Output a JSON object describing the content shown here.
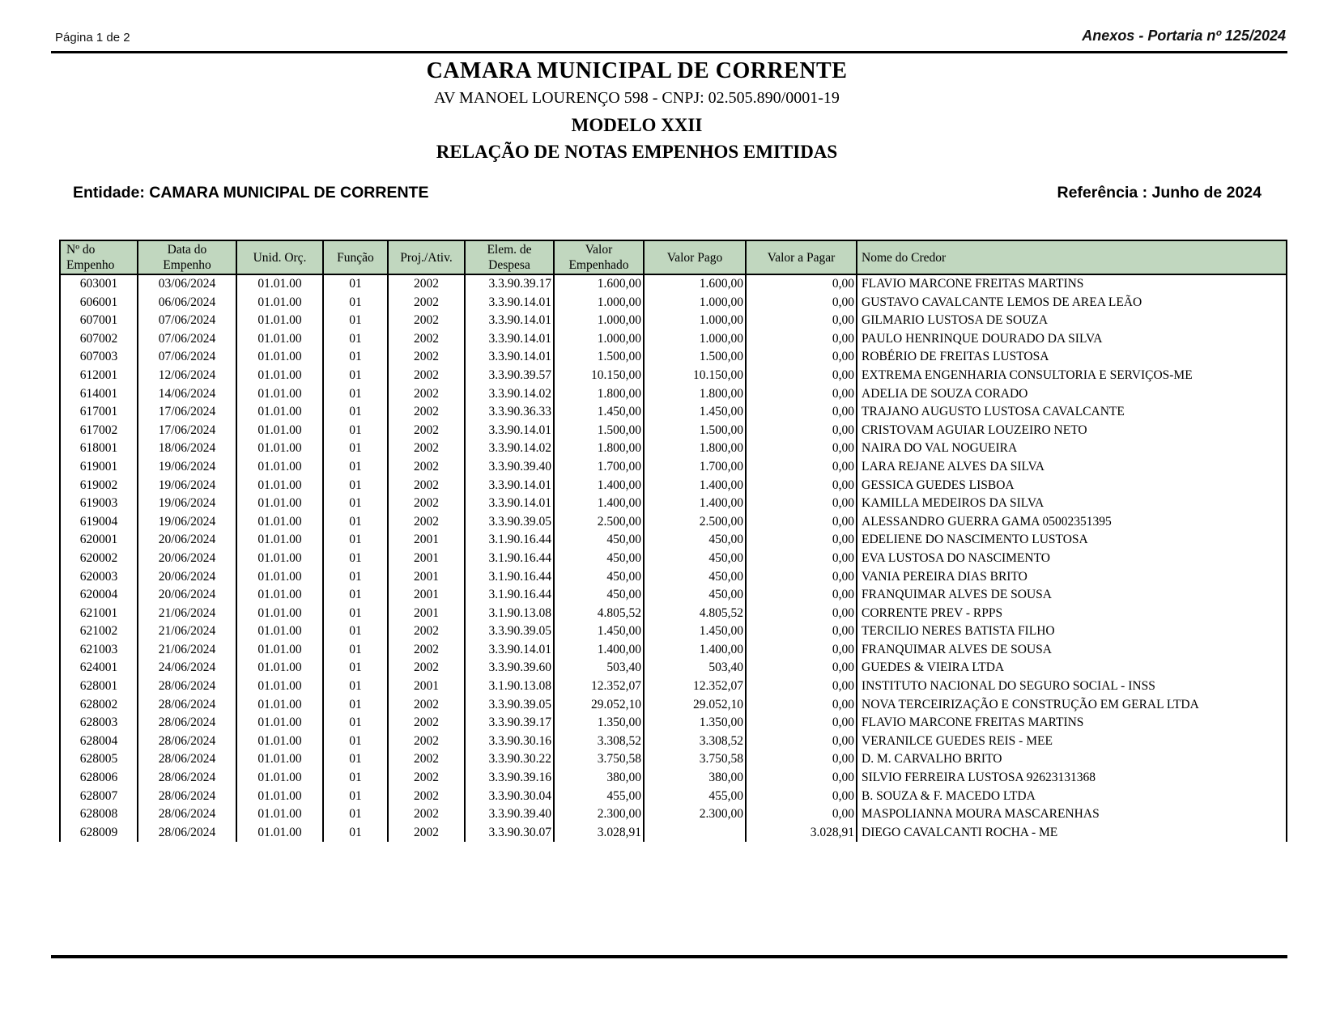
{
  "page": {
    "page_indicator": "Página 1 de 2",
    "annex_title": "Anexos - Portaria nº 125/2024"
  },
  "header": {
    "org_name": "CAMARA MUNICIPAL DE CORRENTE",
    "address_cnpj": "AV MANOEL LOURENÇO 598  -  CNPJ: 02.505.890/0001-19",
    "model": "MODELO XXII",
    "report_title": "RELAÇÃO DE NOTAS EMPENHOS EMITIDAS"
  },
  "meta": {
    "entity_label": "Entidade: CAMARA MUNICIPAL DE CORRENTE",
    "reference_label": "Referência : Junho de 2024"
  },
  "table": {
    "header_fill": "#c1d7bf",
    "columns": [
      "Nº do\nEmpenho",
      "Data do\nEmpenho",
      "Unid. Orç.",
      "Função",
      "Proj./Ativ.",
      "Elem. de\nDespesa",
      "Valor\nEmpenhado",
      "Valor Pago",
      "Valor a Pagar",
      "Nome do Credor"
    ],
    "rows": [
      [
        "603001",
        "03/06/2024",
        "01.01.00",
        "01",
        "2002",
        "3.3.90.39.17",
        "1.600,00",
        "1.600,00",
        "0,00",
        "FLAVIO MARCONE FREITAS MARTINS"
      ],
      [
        "606001",
        "06/06/2024",
        "01.01.00",
        "01",
        "2002",
        "3.3.90.14.01",
        "1.000,00",
        "1.000,00",
        "0,00",
        "GUSTAVO CAVALCANTE LEMOS DE AREA LEÃO"
      ],
      [
        "607001",
        "07/06/2024",
        "01.01.00",
        "01",
        "2002",
        "3.3.90.14.01",
        "1.000,00",
        "1.000,00",
        "0,00",
        "GILMARIO LUSTOSA DE SOUZA"
      ],
      [
        "607002",
        "07/06/2024",
        "01.01.00",
        "01",
        "2002",
        "3.3.90.14.01",
        "1.000,00",
        "1.000,00",
        "0,00",
        "PAULO HENRINQUE DOURADO DA SILVA"
      ],
      [
        "607003",
        "07/06/2024",
        "01.01.00",
        "01",
        "2002",
        "3.3.90.14.01",
        "1.500,00",
        "1.500,00",
        "0,00",
        "ROBÉRIO DE FREITAS LUSTOSA"
      ],
      [
        "612001",
        "12/06/2024",
        "01.01.00",
        "01",
        "2002",
        "3.3.90.39.57",
        "10.150,00",
        "10.150,00",
        "0,00",
        "EXTREMA ENGENHARIA CONSULTORIA E SERVIÇOS-ME"
      ],
      [
        "614001",
        "14/06/2024",
        "01.01.00",
        "01",
        "2002",
        "3.3.90.14.02",
        "1.800,00",
        "1.800,00",
        "0,00",
        "ADELIA DE SOUZA CORADO"
      ],
      [
        "617001",
        "17/06/2024",
        "01.01.00",
        "01",
        "2002",
        "3.3.90.36.33",
        "1.450,00",
        "1.450,00",
        "0,00",
        "TRAJANO AUGUSTO LUSTOSA CAVALCANTE"
      ],
      [
        "617002",
        "17/06/2024",
        "01.01.00",
        "01",
        "2002",
        "3.3.90.14.01",
        "1.500,00",
        "1.500,00",
        "0,00",
        "CRISTOVAM AGUIAR LOUZEIRO NETO"
      ],
      [
        "618001",
        "18/06/2024",
        "01.01.00",
        "01",
        "2002",
        "3.3.90.14.02",
        "1.800,00",
        "1.800,00",
        "0,00",
        "NAIRA DO VAL NOGUEIRA"
      ],
      [
        "619001",
        "19/06/2024",
        "01.01.00",
        "01",
        "2002",
        "3.3.90.39.40",
        "1.700,00",
        "1.700,00",
        "0,00",
        "LARA REJANE ALVES DA SILVA"
      ],
      [
        "619002",
        "19/06/2024",
        "01.01.00",
        "01",
        "2002",
        "3.3.90.14.01",
        "1.400,00",
        "1.400,00",
        "0,00",
        "GESSICA GUEDES LISBOA"
      ],
      [
        "619003",
        "19/06/2024",
        "01.01.00",
        "01",
        "2002",
        "3.3.90.14.01",
        "1.400,00",
        "1.400,00",
        "0,00",
        "KAMILLA MEDEIROS DA SILVA"
      ],
      [
        "619004",
        "19/06/2024",
        "01.01.00",
        "01",
        "2002",
        "3.3.90.39.05",
        "2.500,00",
        "2.500,00",
        "0,00",
        "ALESSANDRO GUERRA GAMA 05002351395"
      ],
      [
        "620001",
        "20/06/2024",
        "01.01.00",
        "01",
        "2001",
        "3.1.90.16.44",
        "450,00",
        "450,00",
        "0,00",
        "EDELIENE DO NASCIMENTO LUSTOSA"
      ],
      [
        "620002",
        "20/06/2024",
        "01.01.00",
        "01",
        "2001",
        "3.1.90.16.44",
        "450,00",
        "450,00",
        "0,00",
        "EVA LUSTOSA DO NASCIMENTO"
      ],
      [
        "620003",
        "20/06/2024",
        "01.01.00",
        "01",
        "2001",
        "3.1.90.16.44",
        "450,00",
        "450,00",
        "0,00",
        "VANIA PEREIRA DIAS BRITO"
      ],
      [
        "620004",
        "20/06/2024",
        "01.01.00",
        "01",
        "2001",
        "3.1.90.16.44",
        "450,00",
        "450,00",
        "0,00",
        "FRANQUIMAR ALVES DE SOUSA"
      ],
      [
        "621001",
        "21/06/2024",
        "01.01.00",
        "01",
        "2001",
        "3.1.90.13.08",
        "4.805,52",
        "4.805,52",
        "0,00",
        "CORRENTE PREV - RPPS"
      ],
      [
        "621002",
        "21/06/2024",
        "01.01.00",
        "01",
        "2002",
        "3.3.90.39.05",
        "1.450,00",
        "1.450,00",
        "0,00",
        "TERCILIO NERES BATISTA FILHO"
      ],
      [
        "621003",
        "21/06/2024",
        "01.01.00",
        "01",
        "2002",
        "3.3.90.14.01",
        "1.400,00",
        "1.400,00",
        "0,00",
        "FRANQUIMAR ALVES DE SOUSA"
      ],
      [
        "624001",
        "24/06/2024",
        "01.01.00",
        "01",
        "2002",
        "3.3.90.39.60",
        "503,40",
        "503,40",
        "0,00",
        "GUEDES & VIEIRA LTDA"
      ],
      [
        "628001",
        "28/06/2024",
        "01.01.00",
        "01",
        "2001",
        "3.1.90.13.08",
        "12.352,07",
        "12.352,07",
        "0,00",
        "INSTITUTO NACIONAL DO SEGURO SOCIAL - INSS"
      ],
      [
        "628002",
        "28/06/2024",
        "01.01.00",
        "01",
        "2002",
        "3.3.90.39.05",
        "29.052,10",
        "29.052,10",
        "0,00",
        "NOVA TERCEIRIZAÇÃO E CONSTRUÇÃO EM GERAL LTDA"
      ],
      [
        "628003",
        "28/06/2024",
        "01.01.00",
        "01",
        "2002",
        "3.3.90.39.17",
        "1.350,00",
        "1.350,00",
        "0,00",
        "FLAVIO MARCONE FREITAS MARTINS"
      ],
      [
        "628004",
        "28/06/2024",
        "01.01.00",
        "01",
        "2002",
        "3.3.90.30.16",
        "3.308,52",
        "3.308,52",
        "0,00",
        "VERANILCE GUEDES REIS - MEE"
      ],
      [
        "628005",
        "28/06/2024",
        "01.01.00",
        "01",
        "2002",
        "3.3.90.30.22",
        "3.750,58",
        "3.750,58",
        "0,00",
        "D. M. CARVALHO BRITO"
      ],
      [
        "628006",
        "28/06/2024",
        "01.01.00",
        "01",
        "2002",
        "3.3.90.39.16",
        "380,00",
        "380,00",
        "0,00",
        "SILVIO FERREIRA LUSTOSA 92623131368"
      ],
      [
        "628007",
        "28/06/2024",
        "01.01.00",
        "01",
        "2002",
        "3.3.90.30.04",
        "455,00",
        "455,00",
        "0,00",
        "B. SOUZA & F. MACEDO LTDA"
      ],
      [
        "628008",
        "28/06/2024",
        "01.01.00",
        "01",
        "2002",
        "3.3.90.39.40",
        "2.300,00",
        "2.300,00",
        "0,00",
        "MASPOLIANNA MOURA MASCARENHAS"
      ],
      [
        "628009",
        "28/06/2024",
        "01.01.00",
        "01",
        "2002",
        "3.3.90.30.07",
        "3.028,91",
        "",
        "3.028,91",
        "DIEGO CAVALCANTI ROCHA - ME"
      ]
    ]
  }
}
